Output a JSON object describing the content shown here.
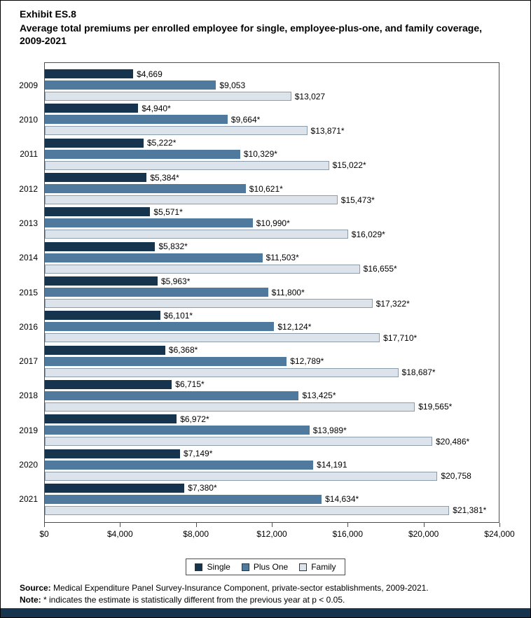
{
  "header": {
    "exhibit": "Exhibit ES.8",
    "title": "Average total premiums per enrolled employee for single, employee-plus-one, and family coverage, 2009-2021"
  },
  "colors": {
    "single": "#16344e",
    "plus_one": "#4f7a9e",
    "family": "#dde3ea",
    "family_border": "#8d9cab",
    "footer_bar": "#16344e"
  },
  "chart_data": {
    "type": "bar",
    "orientation": "horizontal",
    "title": "Average total premiums per enrolled employee for single, employee-plus-one, and family coverage, 2009-2021",
    "xlabel": "",
    "ylabel": "",
    "xlim": [
      0,
      24000
    ],
    "x_ticks": [
      "$0",
      "$4,000",
      "$8,000",
      "$12,000",
      "$16,000",
      "$20,000",
      "$24,000"
    ],
    "grid": false,
    "legend_position": "bottom",
    "categories": [
      "2009",
      "2010",
      "2011",
      "2012",
      "2013",
      "2014",
      "2015",
      "2016",
      "2017",
      "2018",
      "2019",
      "2020",
      "2021"
    ],
    "series": [
      {
        "name": "Single",
        "color": "#16344e",
        "values": [
          4669,
          4940,
          5222,
          5384,
          5571,
          5832,
          5963,
          6101,
          6368,
          6715,
          6972,
          7149,
          7380
        ],
        "labels": [
          "$4,669",
          "$4,940*",
          "$5,222*",
          "$5,384*",
          "$5,571*",
          "$5,832*",
          "$5,963*",
          "$6,101*",
          "$6,368*",
          "$6,715*",
          "$6,972*",
          "$7,149*",
          "$7,380*"
        ]
      },
      {
        "name": "Plus One",
        "color": "#4f7a9e",
        "values": [
          9053,
          9664,
          10329,
          10621,
          10990,
          11503,
          11800,
          12124,
          12789,
          13425,
          13989,
          14191,
          14634
        ],
        "labels": [
          "$9,053",
          "$9,664*",
          "$10,329*",
          "$10,621*",
          "$10,990*",
          "$11,503*",
          "$11,800*",
          "$12,124*",
          "$12,789*",
          "$13,425*",
          "$13,989*",
          "$14,191",
          "$14,634*"
        ]
      },
      {
        "name": "Family",
        "color": "#dde3ea",
        "border_color": "#8d9cab",
        "values": [
          13027,
          13871,
          15022,
          15473,
          16029,
          16655,
          17322,
          17710,
          18687,
          19565,
          20486,
          20758,
          21381
        ],
        "labels": [
          "$13,027",
          "$13,871*",
          "$15,022*",
          "$15,473*",
          "$16,029*",
          "$16,655*",
          "$17,322*",
          "$17,710*",
          "$18,687*",
          "$19,565*",
          "$20,486*",
          "$20,758",
          "$21,381*"
        ]
      }
    ]
  },
  "notes": {
    "source_label": "Source:",
    "source_text": " Medical Expenditure Panel Survey-Insurance Component, private-sector establishments, 2009-2021.",
    "note_label": "Note:",
    "note_text": " * indicates the estimate is statistically different from the previous year at p < 0.05."
  }
}
